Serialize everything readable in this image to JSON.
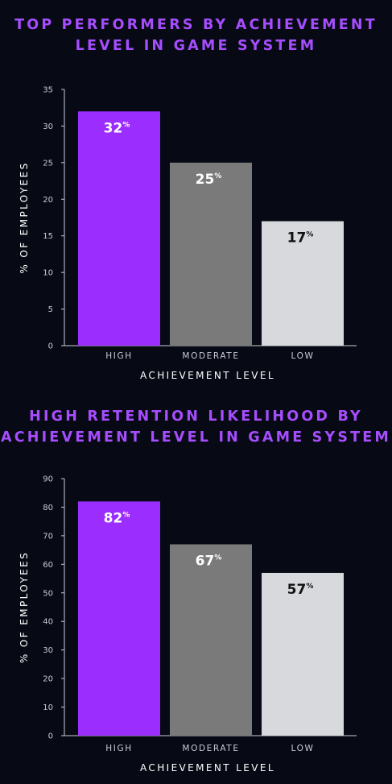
{
  "chart_data": [
    {
      "type": "bar",
      "title": "TOP PERFORMERS BY ACHIEVEMENT LEVEL IN GAME SYSTEM",
      "categories": [
        "HIGH",
        "MODERATE",
        "LOW"
      ],
      "values": [
        32,
        25,
        17
      ],
      "value_suffix": "%",
      "xlabel": "ACHIEVEMENT LEVEL",
      "ylabel": "% OF EMPLOYEES",
      "ylim": [
        0,
        35
      ],
      "yticks": [
        0,
        5,
        10,
        15,
        20,
        25,
        30,
        35
      ],
      "grid": false,
      "bar_colors": [
        "#9b2eff",
        "#7a7a7a",
        "#d7d9dd"
      ],
      "label_colors": [
        "#ffffff",
        "#ffffff",
        "#111111"
      ]
    },
    {
      "type": "bar",
      "title": "HIGH RETENTION LIKELIHOOD BY ACHIEVEMENT LEVEL IN GAME SYSTEM",
      "categories": [
        "HIGH",
        "MODERATE",
        "LOW"
      ],
      "values": [
        82,
        67,
        57
      ],
      "value_suffix": "%",
      "xlabel": "ACHIEVEMENT LEVEL",
      "ylabel": "% OF EMPLOYEES",
      "ylim": [
        0,
        90
      ],
      "yticks": [
        0,
        10,
        20,
        30,
        40,
        50,
        60,
        70,
        80,
        90
      ],
      "grid": false,
      "bar_colors": [
        "#9b2eff",
        "#7a7a7a",
        "#d7d9dd"
      ],
      "label_colors": [
        "#ffffff",
        "#ffffff",
        "#111111"
      ]
    }
  ],
  "colors": {
    "background": "#070a15",
    "title": "#a64dff",
    "axis": "#c9cbd3"
  },
  "titles": {
    "chart1_line1": "TOP PERFORMERS BY ACHIEVEMENT",
    "chart1_line2": "LEVEL IN GAME SYSTEM",
    "chart2_line1": "HIGH RETENTION LIKELIHOOD BY",
    "chart2_line2": "ACHIEVEMENT LEVEL IN GAME SYSTEM"
  }
}
